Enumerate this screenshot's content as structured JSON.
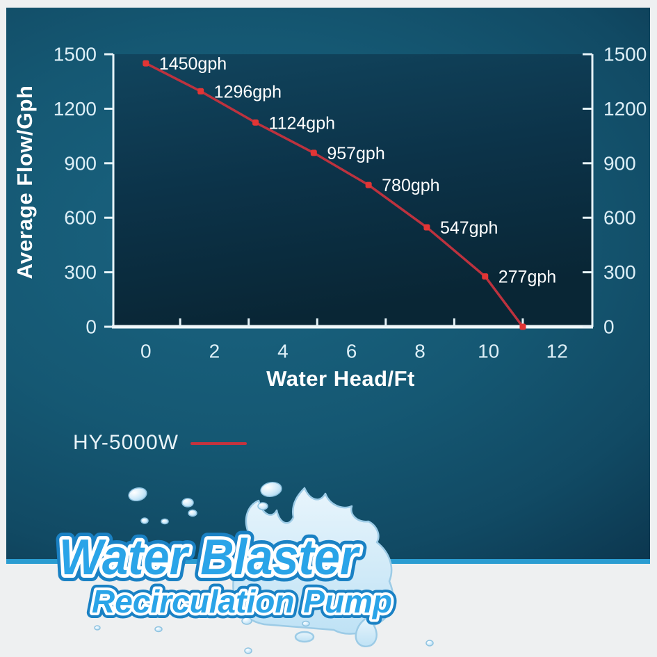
{
  "colors": {
    "accent_red_line": "#bd323e",
    "accent_red_marker": "#e23535",
    "axis_stroke": "#e6f3f8",
    "tick_text": "#ddeff7",
    "panel_teal": "#155873",
    "plot_dark": "#0a2636",
    "stripe_blue": "#2a9cd1",
    "logo_blue": "#2aa4e8",
    "logo_outline_blue": "#1a81c4",
    "splash_blue": "#c9e7f7",
    "page_bg": "#eef0f1"
  },
  "chart_data": {
    "type": "line",
    "title": "",
    "xlabel": "Water Head/Ft",
    "ylabel": "Average Flow/Gph",
    "x": [
      0,
      1.6,
      3.2,
      4.9,
      6.5,
      8.2,
      9.9,
      11
    ],
    "y": [
      1450,
      1296,
      1124,
      957,
      780,
      547,
      277,
      0
    ],
    "point_labels": [
      "1450gph",
      "1296gph",
      "1124gph",
      "957gph",
      "780gph",
      "547gph",
      "277gph",
      ""
    ],
    "xtick_labels": [
      0,
      2,
      4,
      6,
      8,
      10,
      12
    ],
    "xtick_marks": [
      1,
      3,
      5,
      7,
      9,
      11
    ],
    "yticks": [
      0,
      300,
      600,
      900,
      1200,
      1500
    ],
    "xlim": [
      -0.95,
      13.03
    ],
    "ylim": [
      0,
      1500
    ],
    "grid": false,
    "y_axis_sides": "both",
    "legend": {
      "label": "HY-5000W",
      "position": "bottom-left"
    }
  },
  "logo": {
    "line1": "Water Blaster",
    "line2": "Recirculation Pump"
  }
}
